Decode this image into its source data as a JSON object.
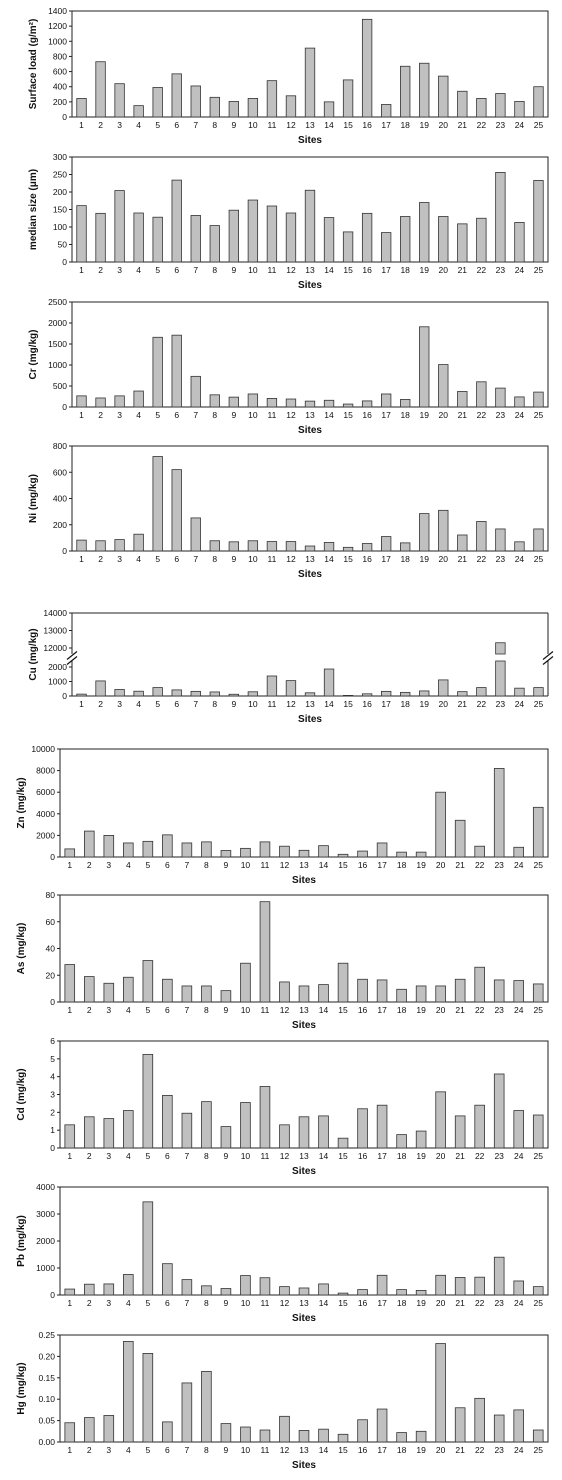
{
  "chart_data": [
    {
      "type": "bar",
      "ylabel": "Surface load (g/m²)",
      "xlabel": "Sites",
      "categories": [
        "1",
        "2",
        "3",
        "4",
        "5",
        "6",
        "7",
        "8",
        "9",
        "10",
        "11",
        "12",
        "13",
        "14",
        "15",
        "16",
        "17",
        "18",
        "19",
        "20",
        "21",
        "22",
        "23",
        "24",
        "25"
      ],
      "values": [
        245,
        730,
        440,
        150,
        390,
        570,
        410,
        260,
        205,
        245,
        480,
        280,
        910,
        200,
        490,
        1290,
        165,
        670,
        710,
        540,
        340,
        245,
        310,
        205,
        400
      ],
      "ylim": [
        0,
        1400
      ],
      "yticks": [
        0,
        200,
        400,
        600,
        800,
        1000,
        1200,
        1400
      ],
      "ytick_labels": [
        "0",
        "200",
        "400",
        "600",
        "800",
        "1000",
        "1200",
        "1400"
      ]
    },
    {
      "type": "bar",
      "ylabel": "median size (μm)",
      "xlabel": "Sites",
      "categories": [
        "1",
        "2",
        "3",
        "4",
        "5",
        "6",
        "7",
        "8",
        "9",
        "10",
        "11",
        "12",
        "13",
        "14",
        "15",
        "16",
        "17",
        "18",
        "19",
        "20",
        "21",
        "22",
        "23",
        "24",
        "25"
      ],
      "values": [
        161,
        139,
        204,
        140,
        128,
        234,
        133,
        104,
        148,
        177,
        160,
        140,
        205,
        127,
        86,
        139,
        84,
        130,
        170,
        130,
        109,
        125,
        256,
        113,
        233
      ],
      "ylim": [
        0,
        300
      ],
      "yticks": [
        0,
        50,
        100,
        150,
        200,
        250,
        300
      ],
      "ytick_labels": [
        "0",
        "50",
        "100",
        "150",
        "200",
        "250",
        "300"
      ]
    },
    {
      "type": "bar",
      "ylabel": "Cr (mg/kg)",
      "xlabel": "Sites",
      "categories": [
        "1",
        "2",
        "3",
        "4",
        "5",
        "6",
        "7",
        "8",
        "9",
        "10",
        "11",
        "12",
        "13",
        "14",
        "15",
        "16",
        "17",
        "18",
        "19",
        "20",
        "21",
        "22",
        "23",
        "24",
        "25"
      ],
      "values": [
        265,
        215,
        265,
        380,
        1660,
        1710,
        730,
        290,
        235,
        310,
        205,
        190,
        140,
        160,
        70,
        145,
        310,
        180,
        1910,
        1010,
        370,
        600,
        450,
        240,
        355
      ],
      "ylim": [
        0,
        2500
      ],
      "yticks": [
        0,
        500,
        1000,
        1500,
        2000,
        2500
      ],
      "ytick_labels": [
        "0",
        "500",
        "1000",
        "1500",
        "2000",
        "2500"
      ]
    },
    {
      "type": "bar",
      "ylabel": "Ni (mg/kg)",
      "xlabel": "Sites",
      "categories": [
        "1",
        "2",
        "3",
        "4",
        "5",
        "6",
        "7",
        "8",
        "9",
        "10",
        "11",
        "12",
        "13",
        "14",
        "15",
        "16",
        "17",
        "18",
        "19",
        "20",
        "21",
        "22",
        "23",
        "24",
        "25"
      ],
      "values": [
        83,
        78,
        87,
        128,
        720,
        620,
        252,
        78,
        70,
        78,
        72,
        72,
        38,
        65,
        28,
        57,
        110,
        62,
        285,
        310,
        122,
        225,
        168,
        70,
        168
      ],
      "ylim": [
        0,
        800
      ],
      "yticks": [
        0,
        200,
        400,
        600,
        800
      ],
      "ytick_labels": [
        "0",
        "200",
        "400",
        "600",
        "800"
      ]
    },
    {
      "type": "bar",
      "ylabel": "Cu (mg/kg)",
      "xlabel": "Sites",
      "categories": [
        "1",
        "2",
        "3",
        "4",
        "5",
        "6",
        "7",
        "8",
        "9",
        "10",
        "11",
        "12",
        "13",
        "14",
        "15",
        "16",
        "17",
        "18",
        "19",
        "20",
        "21",
        "22",
        "23",
        "24",
        "25"
      ],
      "values": [
        130,
        1040,
        450,
        330,
        580,
        420,
        320,
        280,
        120,
        290,
        1380,
        1060,
        220,
        1860,
        40,
        150,
        320,
        250,
        350,
        1110,
        300,
        580,
        12300,
        540,
        580
      ],
      "ylim": [
        0,
        14000
      ],
      "broken_axis": {
        "lower": [
          0,
          2000
        ],
        "upper": [
          12000,
          14000
        ]
      },
      "yticks": [
        0,
        1000,
        2000,
        12000,
        13000,
        14000
      ],
      "ytick_labels": [
        "0",
        "1000",
        "2000",
        "12000",
        "13000",
        "14000"
      ]
    },
    {
      "type": "bar",
      "ylabel": "Zn (mg/kg)",
      "xlabel": "Sites",
      "categories": [
        "1",
        "2",
        "3",
        "4",
        "5",
        "6",
        "7",
        "8",
        "9",
        "10",
        "11",
        "12",
        "13",
        "14",
        "15",
        "16",
        "17",
        "18",
        "19",
        "20",
        "21",
        "22",
        "23",
        "24",
        "25"
      ],
      "values": [
        750,
        2400,
        2000,
        1300,
        1450,
        2050,
        1300,
        1400,
        600,
        800,
        1400,
        1000,
        620,
        1050,
        250,
        550,
        1300,
        450,
        450,
        6000,
        3400,
        1000,
        8200,
        900,
        4600
      ],
      "ylim": [
        0,
        10000
      ],
      "yticks": [
        0,
        2000,
        4000,
        6000,
        8000,
        10000
      ],
      "ytick_labels": [
        "0",
        "2000",
        "4000",
        "6000",
        "8000",
        "10000"
      ]
    },
    {
      "type": "bar",
      "ylabel": "As (mg/kg)",
      "xlabel": "Sites",
      "categories": [
        "1",
        "2",
        "3",
        "4",
        "5",
        "6",
        "7",
        "8",
        "9",
        "10",
        "11",
        "12",
        "13",
        "14",
        "15",
        "16",
        "17",
        "18",
        "19",
        "20",
        "21",
        "22",
        "23",
        "24",
        "25"
      ],
      "values": [
        28,
        19,
        14,
        18.5,
        31,
        17,
        12,
        12,
        8.5,
        29,
        75,
        15,
        12,
        13,
        29,
        17,
        16.5,
        9.5,
        12,
        12,
        17,
        26,
        16.5,
        16,
        13.5
      ],
      "ylim": [
        0,
        80
      ],
      "yticks": [
        0,
        20,
        40,
        60,
        80
      ],
      "ytick_labels": [
        "0",
        "20",
        "40",
        "60",
        "80"
      ]
    },
    {
      "type": "bar",
      "ylabel": "Cd (mg/kg)",
      "xlabel": "Sites",
      "categories": [
        "1",
        "2",
        "3",
        "4",
        "5",
        "6",
        "7",
        "8",
        "9",
        "10",
        "11",
        "12",
        "13",
        "14",
        "15",
        "16",
        "17",
        "18",
        "19",
        "20",
        "21",
        "22",
        "23",
        "24",
        "25"
      ],
      "values": [
        1.3,
        1.75,
        1.65,
        2.1,
        5.25,
        2.95,
        1.95,
        2.6,
        1.2,
        2.55,
        3.45,
        1.3,
        1.75,
        1.8,
        0.55,
        2.2,
        2.4,
        0.75,
        0.95,
        3.15,
        1.8,
        2.4,
        4.15,
        2.1,
        1.85
      ],
      "ylim": [
        0,
        6
      ],
      "yticks": [
        0,
        1,
        2,
        3,
        4,
        5,
        6
      ],
      "ytick_labels": [
        "0",
        "1",
        "2",
        "3",
        "4",
        "5",
        "6"
      ]
    },
    {
      "type": "bar",
      "ylabel": "Pb (mg/kg)",
      "xlabel": "Sites",
      "categories": [
        "1",
        "2",
        "3",
        "4",
        "5",
        "6",
        "7",
        "8",
        "9",
        "10",
        "11",
        "12",
        "13",
        "14",
        "15",
        "16",
        "17",
        "18",
        "19",
        "20",
        "21",
        "22",
        "23",
        "24",
        "25"
      ],
      "values": [
        220,
        400,
        410,
        760,
        3450,
        1160,
        570,
        340,
        240,
        720,
        640,
        310,
        260,
        410,
        70,
        200,
        730,
        200,
        170,
        730,
        650,
        660,
        1400,
        520,
        310
      ],
      "ylim": [
        0,
        4000
      ],
      "yticks": [
        0,
        1000,
        2000,
        3000,
        4000
      ],
      "ytick_labels": [
        "0",
        "1000",
        "2000",
        "3000",
        "4000"
      ]
    },
    {
      "type": "bar",
      "ylabel": "Hg (mg/kg)",
      "xlabel": "Sites",
      "categories": [
        "1",
        "2",
        "3",
        "4",
        "5",
        "6",
        "7",
        "8",
        "9",
        "10",
        "11",
        "12",
        "13",
        "14",
        "15",
        "16",
        "17",
        "18",
        "19",
        "20",
        "21",
        "22",
        "23",
        "24",
        "25"
      ],
      "values": [
        0.045,
        0.057,
        0.062,
        0.235,
        0.207,
        0.047,
        0.138,
        0.165,
        0.043,
        0.035,
        0.028,
        0.06,
        0.027,
        0.03,
        0.018,
        0.052,
        0.077,
        0.022,
        0.025,
        0.23,
        0.08,
        0.102,
        0.063,
        0.075,
        0.028
      ],
      "ylim": [
        0,
        0.25
      ],
      "yticks": [
        0,
        0.05,
        0.1,
        0.15,
        0.2,
        0.25
      ],
      "ytick_labels": [
        "0.00",
        "0.05",
        "0.10",
        "0.15",
        "0.20",
        "0.25"
      ]
    }
  ],
  "style": {
    "bar_fill": "#c0c0c0",
    "bar_stroke": "#333333",
    "axis_color": "#222222"
  }
}
